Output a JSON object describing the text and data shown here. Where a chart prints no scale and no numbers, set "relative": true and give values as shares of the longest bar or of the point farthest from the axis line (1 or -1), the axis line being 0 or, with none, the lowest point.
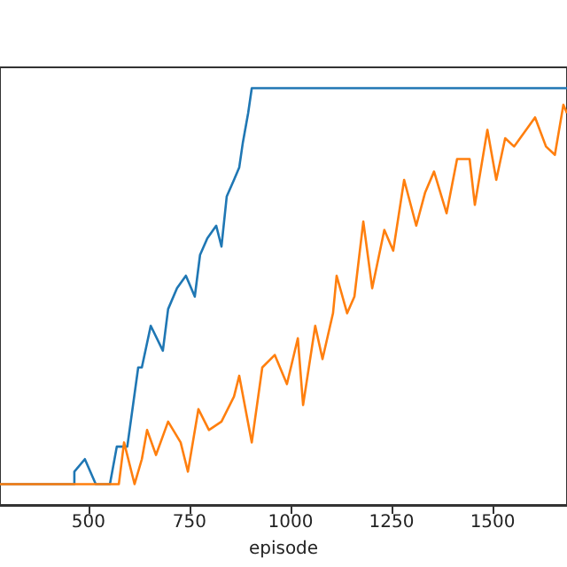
{
  "chart_data": {
    "type": "line",
    "xlabel": "episode",
    "relative": true,
    "xlim": [
      281,
      1684
    ],
    "xticks": [
      500,
      750,
      1000,
      1250,
      1500
    ],
    "grid": false,
    "series": [
      {
        "color": "#1f77b4",
        "x": [
          281,
          465,
          465,
          491,
          518,
          553,
          570,
          596,
          623,
          632,
          654,
          684,
          697,
          719,
          741,
          763,
          776,
          794,
          816,
          829,
          842,
          860,
          873,
          882,
          895,
          904,
          1684
        ],
        "values": [
          0.05,
          0.05,
          0.08,
          0.11,
          0.05,
          0.05,
          0.14,
          0.14,
          0.33,
          0.33,
          0.43,
          0.37,
          0.47,
          0.52,
          0.55,
          0.5,
          0.6,
          0.64,
          0.67,
          0.62,
          0.74,
          0.78,
          0.81,
          0.87,
          0.94,
          1,
          1
        ]
      },
      {
        "color": "#ff7f0e",
        "x": [
          281,
          575,
          588,
          614,
          632,
          645,
          667,
          697,
          728,
          746,
          772,
          798,
          829,
          860,
          873,
          904,
          930,
          961,
          991,
          1018,
          1031,
          1061,
          1079,
          1105,
          1114,
          1140,
          1158,
          1180,
          1202,
          1232,
          1254,
          1281,
          1311,
          1333,
          1355,
          1386,
          1412,
          1443,
          1456,
          1487,
          1509,
          1531,
          1553,
          1583,
          1605,
          1632,
          1654,
          1675,
          1684
        ],
        "values": [
          0.05,
          0.05,
          0.15,
          0.05,
          0.11,
          0.18,
          0.12,
          0.2,
          0.15,
          0.08,
          0.23,
          0.18,
          0.2,
          0.26,
          0.31,
          0.15,
          0.33,
          0.36,
          0.29,
          0.4,
          0.24,
          0.43,
          0.35,
          0.46,
          0.55,
          0.46,
          0.5,
          0.68,
          0.52,
          0.66,
          0.61,
          0.78,
          0.67,
          0.75,
          0.8,
          0.7,
          0.83,
          0.83,
          0.72,
          0.9,
          0.78,
          0.88,
          0.86,
          0.9,
          0.93,
          0.86,
          0.84,
          0.96,
          0.94
        ]
      }
    ]
  }
}
